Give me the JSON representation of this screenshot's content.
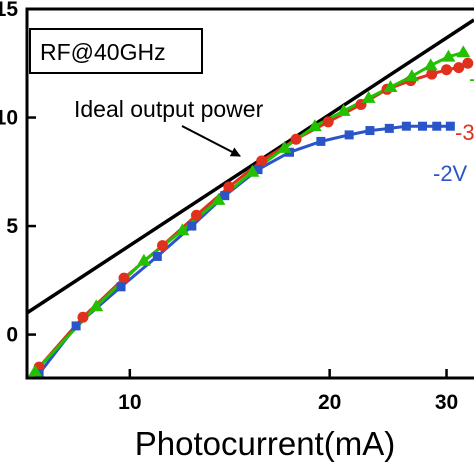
{
  "chart_data": {
    "type": "line",
    "xlabel": "Photocurrent(mA)",
    "ylabel": "",
    "x_scale": "log",
    "xlim": [
      7.0,
      33.0
    ],
    "ylim": [
      -2.0,
      15.0
    ],
    "x_ticks": [
      10,
      20,
      30
    ],
    "x_tick_labels": [
      "10",
      "20",
      "30"
    ],
    "y_ticks": [
      0,
      5,
      10,
      15
    ],
    "y_tick_labels": [
      "0",
      "5",
      "10",
      "15"
    ],
    "legend_label": "RF@40GHz",
    "legend_placement": "top-left",
    "annotation": {
      "text": "Ideal output power"
    },
    "ideal_line": {
      "name": "Ideal output power",
      "x": [
        7.0,
        33.0
      ],
      "y": [
        1.0,
        14.5
      ],
      "color": "#000000"
    },
    "series": [
      {
        "name": "-3",
        "color": "#e0301e",
        "marker": "circle",
        "x": [
          7.3,
          8.5,
          9.8,
          11.2,
          12.6,
          14.1,
          15.8,
          17.8,
          19.9,
          22.3,
          24.4,
          26.5,
          28.5,
          30.0,
          31.3,
          32.3
        ],
        "y": [
          -1.5,
          0.8,
          2.6,
          4.1,
          5.5,
          6.8,
          8.0,
          9.0,
          9.8,
          10.6,
          11.3,
          11.7,
          12.0,
          12.2,
          12.3,
          12.5
        ]
      },
      {
        "name": "-2V",
        "color": "#2a55c8",
        "marker": "square",
        "x": [
          7.3,
          8.3,
          9.7,
          11.0,
          12.4,
          13.9,
          15.6,
          17.4,
          19.4,
          21.4,
          23.0,
          24.6,
          26.1,
          27.6,
          29.0,
          30.4
        ],
        "y": [
          -1.8,
          0.4,
          2.2,
          3.6,
          5.0,
          6.4,
          7.6,
          8.4,
          8.9,
          9.2,
          9.4,
          9.5,
          9.6,
          9.6,
          9.6,
          9.6
        ]
      },
      {
        "name": "-",
        "color": "#22c000",
        "marker": "triangle",
        "x": [
          7.2,
          8.9,
          10.5,
          12.0,
          13.6,
          15.3,
          17.1,
          19.0,
          21.0,
          22.9,
          24.7,
          26.6,
          28.4,
          30.2,
          31.8
        ],
        "y": [
          -1.7,
          1.3,
          3.4,
          4.8,
          6.2,
          7.5,
          8.6,
          9.6,
          10.3,
          10.9,
          11.4,
          11.9,
          12.4,
          12.8,
          13.0
        ]
      }
    ]
  }
}
